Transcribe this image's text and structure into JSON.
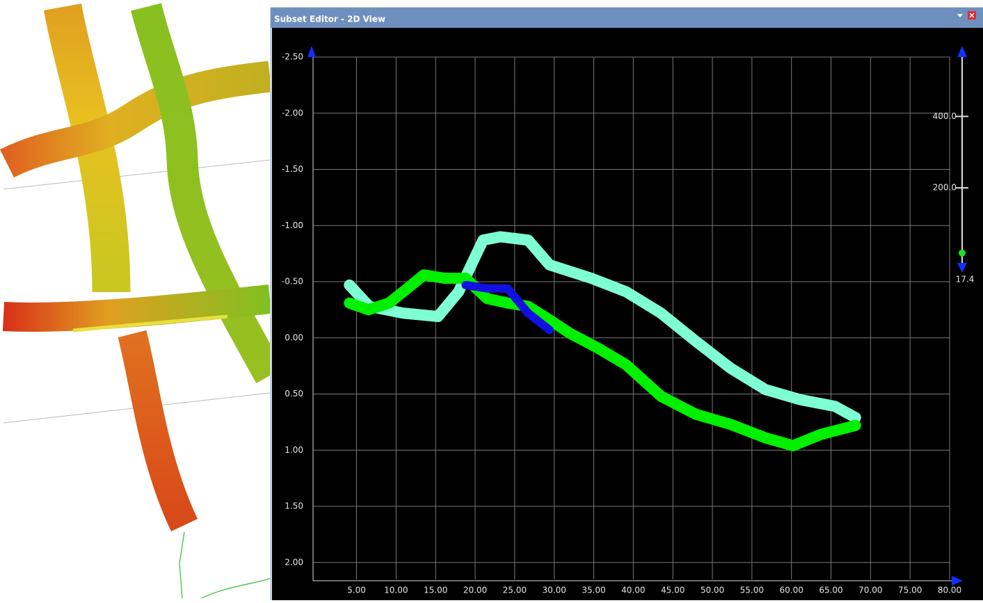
{
  "window": {
    "title": "Subset Editor - 2D View"
  },
  "chart_data": {
    "type": "line",
    "xlim": [
      -0.5,
      80
    ],
    "ylim": [
      -2.5,
      2.15
    ],
    "xticks": [
      {
        "value": 5,
        "label": "5.00"
      },
      {
        "value": 10,
        "label": "10.00"
      },
      {
        "value": 15,
        "label": "15.00"
      },
      {
        "value": 20,
        "label": "20.00"
      },
      {
        "value": 25,
        "label": "25.00"
      },
      {
        "value": 30,
        "label": "30.00"
      },
      {
        "value": 35,
        "label": "35.00"
      },
      {
        "value": 40,
        "label": "40.00"
      },
      {
        "value": 45,
        "label": "45.00"
      },
      {
        "value": 50,
        "label": "50.00"
      },
      {
        "value": 55,
        "label": "55.00"
      },
      {
        "value": 60,
        "label": "60.00"
      },
      {
        "value": 65,
        "label": "65.00"
      },
      {
        "value": 70,
        "label": "70.00"
      },
      {
        "value": 75,
        "label": "75.00"
      },
      {
        "value": 80,
        "label": "80.00"
      }
    ],
    "yticks": [
      {
        "value": -2.5,
        "label": "-2.50"
      },
      {
        "value": -2,
        "label": "-2.00"
      },
      {
        "value": -1.5,
        "label": "-1.50"
      },
      {
        "value": -1,
        "label": "-1.00"
      },
      {
        "value": -0.5,
        "label": "-0.50"
      },
      {
        "value": 0,
        "label": "0.00"
      },
      {
        "value": 0.5,
        "label": "0.50"
      },
      {
        "value": 1,
        "label": "1.00"
      },
      {
        "value": 1.5,
        "label": "1.50"
      },
      {
        "value": 2,
        "label": "2.00"
      }
    ],
    "grid": true,
    "series": [
      {
        "color": "#7fffd4",
        "x": [
          4.1,
          6.6,
          10.9,
          15.3,
          17.9,
          21,
          23.2,
          26.7,
          29.4,
          34.7,
          39.1,
          43.5,
          47.9,
          52.3,
          56.7,
          61.1,
          65.5,
          68.1
        ],
        "values": [
          -0.47,
          -0.28,
          -0.22,
          -0.19,
          -0.41,
          -0.87,
          -0.9,
          -0.87,
          -0.65,
          -0.53,
          -0.41,
          -0.22,
          0.03,
          0.27,
          0.46,
          0.55,
          0.61,
          0.71
        ]
      },
      {
        "color": "#00f000",
        "x": [
          4.1,
          6.5,
          9.1,
          10.9,
          13.5,
          16.2,
          18.8,
          21.5,
          24.1,
          26.7,
          29.4,
          32,
          35.5,
          39.1,
          43.5,
          47.9,
          52.3,
          56.7,
          60.2,
          63.7,
          68.1
        ],
        "values": [
          -0.31,
          -0.25,
          -0.31,
          -0.41,
          -0.56,
          -0.53,
          -0.53,
          -0.35,
          -0.31,
          -0.28,
          -0.16,
          -0.04,
          0.09,
          0.24,
          0.52,
          0.68,
          0.77,
          0.89,
          0.96,
          0.86,
          0.78
        ]
      },
      {
        "color": "#1010e0",
        "x": [
          18.8,
          21.5,
          24.1,
          26.7,
          29.4
        ],
        "values": [
          -0.47,
          -0.44,
          -0.44,
          -0.22,
          -0.07
        ]
      }
    ]
  },
  "color_scale": {
    "lim": [
      -20,
      580
    ],
    "ticks": [
      {
        "value": 400,
        "label": "400.0"
      },
      {
        "value": 200,
        "label": "200.0"
      }
    ],
    "marker": 17.4,
    "marker_color": "#22dd22"
  }
}
